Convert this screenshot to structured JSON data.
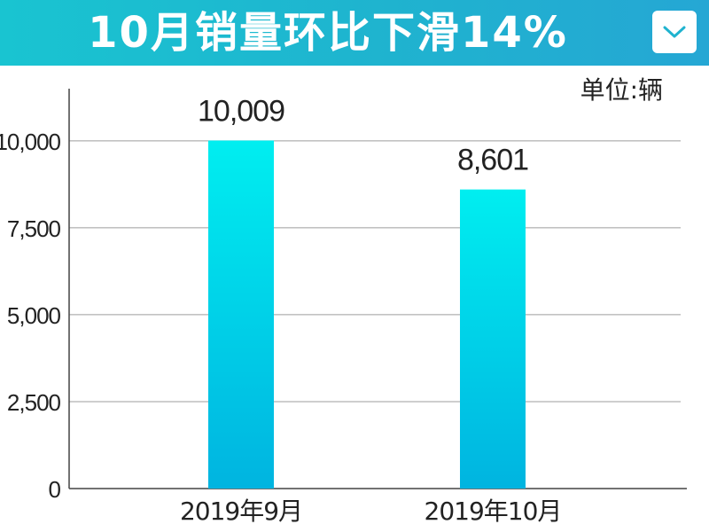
{
  "header": {
    "title": "10月销量环比下滑14%",
    "toggle_icon": "chevron-down-icon"
  },
  "unit_label": "单位:辆",
  "colors": {
    "header_start": "#19c4d1",
    "header_end": "#25a7d4",
    "bar_top": "#00eef0",
    "bar_bottom": "#00b4e0",
    "gridline": "#9e9e9e",
    "axis": "#444444"
  },
  "chart_data": {
    "type": "bar",
    "categories": [
      "2019年9月",
      "2019年10月"
    ],
    "values": [
      10009,
      8601
    ],
    "value_labels": [
      "10,009",
      "8,601"
    ],
    "yticks": [
      0,
      2500,
      5000,
      7500,
      10000
    ],
    "ytick_labels": [
      "0",
      "2,500",
      "5,000",
      "7,500",
      "10,000"
    ],
    "ylim": [
      0,
      11500
    ],
    "grid": true,
    "title": "10月销量环比下滑14%",
    "xlabel": "",
    "ylabel": ""
  }
}
